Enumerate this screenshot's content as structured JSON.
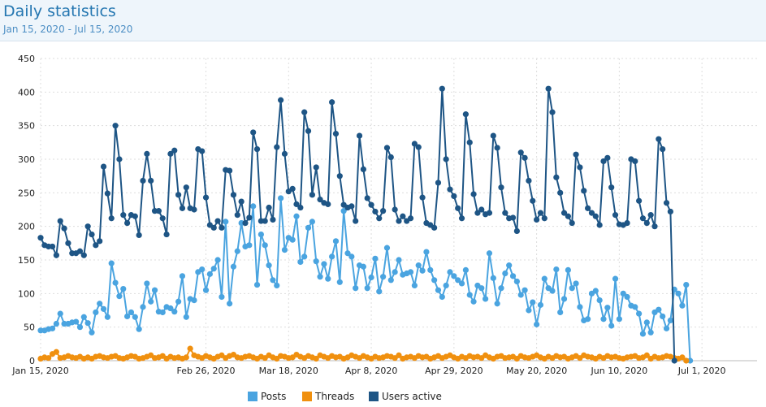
{
  "header": {
    "title": "Daily statistics",
    "date_range": "Jan 15, 2020 - Jul 15, 2020"
  },
  "chart_data": {
    "type": "line",
    "y_ticks": [
      0,
      50,
      100,
      150,
      200,
      250,
      300,
      350,
      400,
      450
    ],
    "x_ticks": [
      "Jan 15, 2020",
      "Feb 26, 2020",
      "Mar 18, 2020",
      "Apr 8, 2020",
      "Apr 29, 2020",
      "May 20, 2020",
      "Jun 10, 2020",
      "Jul 1, 2020"
    ],
    "x_tick_days": [
      0,
      42,
      63,
      84,
      105,
      126,
      147,
      168
    ],
    "ylim": [
      0,
      450
    ],
    "xlim": [
      0,
      182
    ],
    "grid": true,
    "legend_position": "bottom",
    "series": [
      {
        "name": "Posts",
        "color": "#4aa4e0",
        "values": [
          45,
          45,
          47,
          48,
          55,
          70,
          55,
          55,
          57,
          58,
          50,
          65,
          56,
          42,
          72,
          85,
          77,
          65,
          145,
          116,
          96,
          107,
          66,
          72,
          65,
          47,
          80,
          115,
          88,
          105,
          73,
          72,
          80,
          78,
          73,
          88,
          126,
          65,
          92,
          90,
          132,
          136,
          105,
          129,
          137,
          150,
          95,
          207,
          85,
          140,
          163,
          205,
          170,
          172,
          230,
          113,
          188,
          172,
          142,
          120,
          112,
          242,
          165,
          183,
          180,
          215,
          147,
          155,
          198,
          207,
          148,
          125,
          144,
          122,
          155,
          178,
          117,
          223,
          160,
          155,
          108,
          142,
          140,
          108,
          124,
          152,
          103,
          125,
          168,
          120,
          132,
          150,
          128,
          130,
          132,
          112,
          142,
          134,
          162,
          135,
          120,
          105,
          95,
          112,
          132,
          126,
          120,
          115,
          135,
          98,
          88,
          112,
          108,
          92,
          160,
          123,
          85,
          108,
          130,
          142,
          126,
          118,
          98,
          105,
          75,
          87,
          54,
          83,
          122,
          108,
          104,
          136,
          72,
          92,
          135,
          108,
          115,
          80,
          60,
          62,
          100,
          104,
          90,
          62,
          79,
          52,
          122,
          62,
          100,
          95,
          82,
          80,
          70,
          40,
          57,
          42,
          72,
          76,
          66,
          48,
          60,
          106,
          100,
          82,
          113,
          0
        ]
      },
      {
        "name": "Threads",
        "color": "#f0900f",
        "values": [
          3,
          5,
          4,
          10,
          13,
          4,
          5,
          7,
          5,
          4,
          6,
          3,
          5,
          3,
          6,
          7,
          5,
          4,
          6,
          7,
          4,
          3,
          5,
          7,
          6,
          3,
          4,
          6,
          8,
          4,
          5,
          7,
          3,
          6,
          4,
          5,
          3,
          5,
          18,
          8,
          6,
          4,
          7,
          5,
          3,
          6,
          8,
          4,
          7,
          9,
          5,
          4,
          6,
          7,
          5,
          3,
          6,
          4,
          8,
          5,
          3,
          7,
          6,
          4,
          5,
          9,
          6,
          4,
          7,
          5,
          3,
          8,
          6,
          4,
          7,
          5,
          6,
          3,
          5,
          8,
          6,
          4,
          7,
          5,
          3,
          6,
          4,
          5,
          7,
          6,
          4,
          8,
          3,
          5,
          6,
          4,
          7,
          5,
          6,
          3,
          5,
          7,
          4,
          6,
          8,
          5,
          3,
          6,
          4,
          7,
          5,
          6,
          4,
          8,
          5,
          3,
          6,
          7,
          4,
          5,
          6,
          3,
          7,
          5,
          4,
          6,
          8,
          5,
          3,
          6,
          4,
          7,
          5,
          6,
          3,
          5,
          7,
          4,
          8,
          6,
          5,
          3,
          6,
          4,
          7,
          5,
          6,
          4,
          3,
          5,
          6,
          7,
          4,
          5,
          8,
          3,
          6,
          4,
          5,
          7,
          6,
          4,
          3,
          5,
          0
        ]
      },
      {
        "name": "Users active",
        "color": "#1e5585",
        "values": [
          183,
          172,
          170,
          170,
          157,
          208,
          197,
          175,
          160,
          160,
          163,
          157,
          200,
          188,
          172,
          178,
          289,
          249,
          212,
          350,
          300,
          217,
          205,
          217,
          215,
          187,
          268,
          308,
          268,
          223,
          223,
          212,
          188,
          308,
          313,
          247,
          227,
          258,
          227,
          225,
          315,
          312,
          243,
          202,
          198,
          208,
          198,
          284,
          283,
          247,
          217,
          237,
          205,
          213,
          340,
          315,
          208,
          208,
          228,
          210,
          318,
          388,
          308,
          252,
          256,
          233,
          228,
          370,
          342,
          247,
          288,
          240,
          235,
          233,
          385,
          338,
          275,
          232,
          228,
          230,
          208,
          335,
          285,
          242,
          232,
          222,
          212,
          223,
          317,
          303,
          225,
          208,
          215,
          208,
          212,
          323,
          318,
          243,
          205,
          202,
          198,
          265,
          405,
          300,
          255,
          245,
          227,
          212,
          367,
          325,
          248,
          220,
          225,
          218,
          220,
          335,
          317,
          258,
          220,
          212,
          213,
          193,
          310,
          302,
          268,
          238,
          210,
          220,
          212,
          405,
          370,
          273,
          250,
          220,
          215,
          205,
          307,
          288,
          253,
          227,
          220,
          215,
          202,
          297,
          302,
          258,
          217,
          203,
          202,
          205,
          300,
          297,
          238,
          212,
          205,
          217,
          200,
          330,
          315,
          235,
          222,
          0
        ]
      }
    ]
  }
}
